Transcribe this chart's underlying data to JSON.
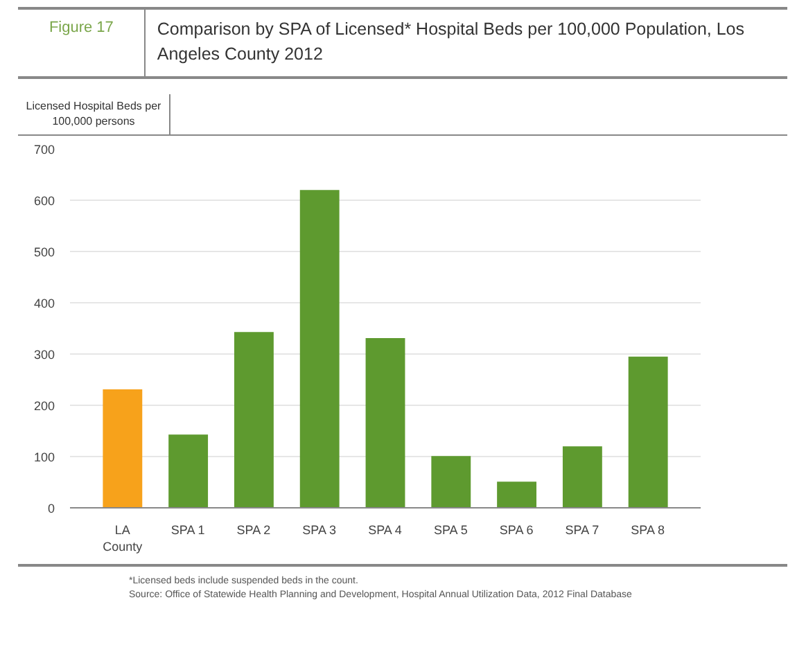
{
  "chart_data": {
    "type": "bar",
    "title": "Comparison by SPA of Licensed* Hospital Beds per 100,000 Population, Los Angeles County 2012",
    "ylabel": "Licensed Hospital Beds per 100,000 persons",
    "annotations": [
      "Figure 17",
      "*Licensed beds include suspended beds in the count.",
      "Source: Office of Statewide Health Planning and Development, Hospital Annual Utilization Data, 2012 Final Database"
    ],
    "categories": [
      "LA\nCounty",
      "SPA 1",
      "SPA 2",
      "SPA 3",
      "SPA 4",
      "SPA 5",
      "SPA 6",
      "SPA 7",
      "SPA 8"
    ],
    "values": [
      231,
      143,
      343,
      620,
      331,
      101,
      51,
      120,
      295
    ],
    "colors": [
      "#f7a21b",
      "#5e9a2f",
      "#5e9a2f",
      "#5e9a2f",
      "#5e9a2f",
      "#5e9a2f",
      "#5e9a2f",
      "#5e9a2f",
      "#5e9a2f"
    ],
    "ylim": [
      0,
      700
    ],
    "yticks": [
      0,
      100,
      200,
      300,
      400,
      500,
      600,
      700
    ],
    "grid": "y"
  }
}
